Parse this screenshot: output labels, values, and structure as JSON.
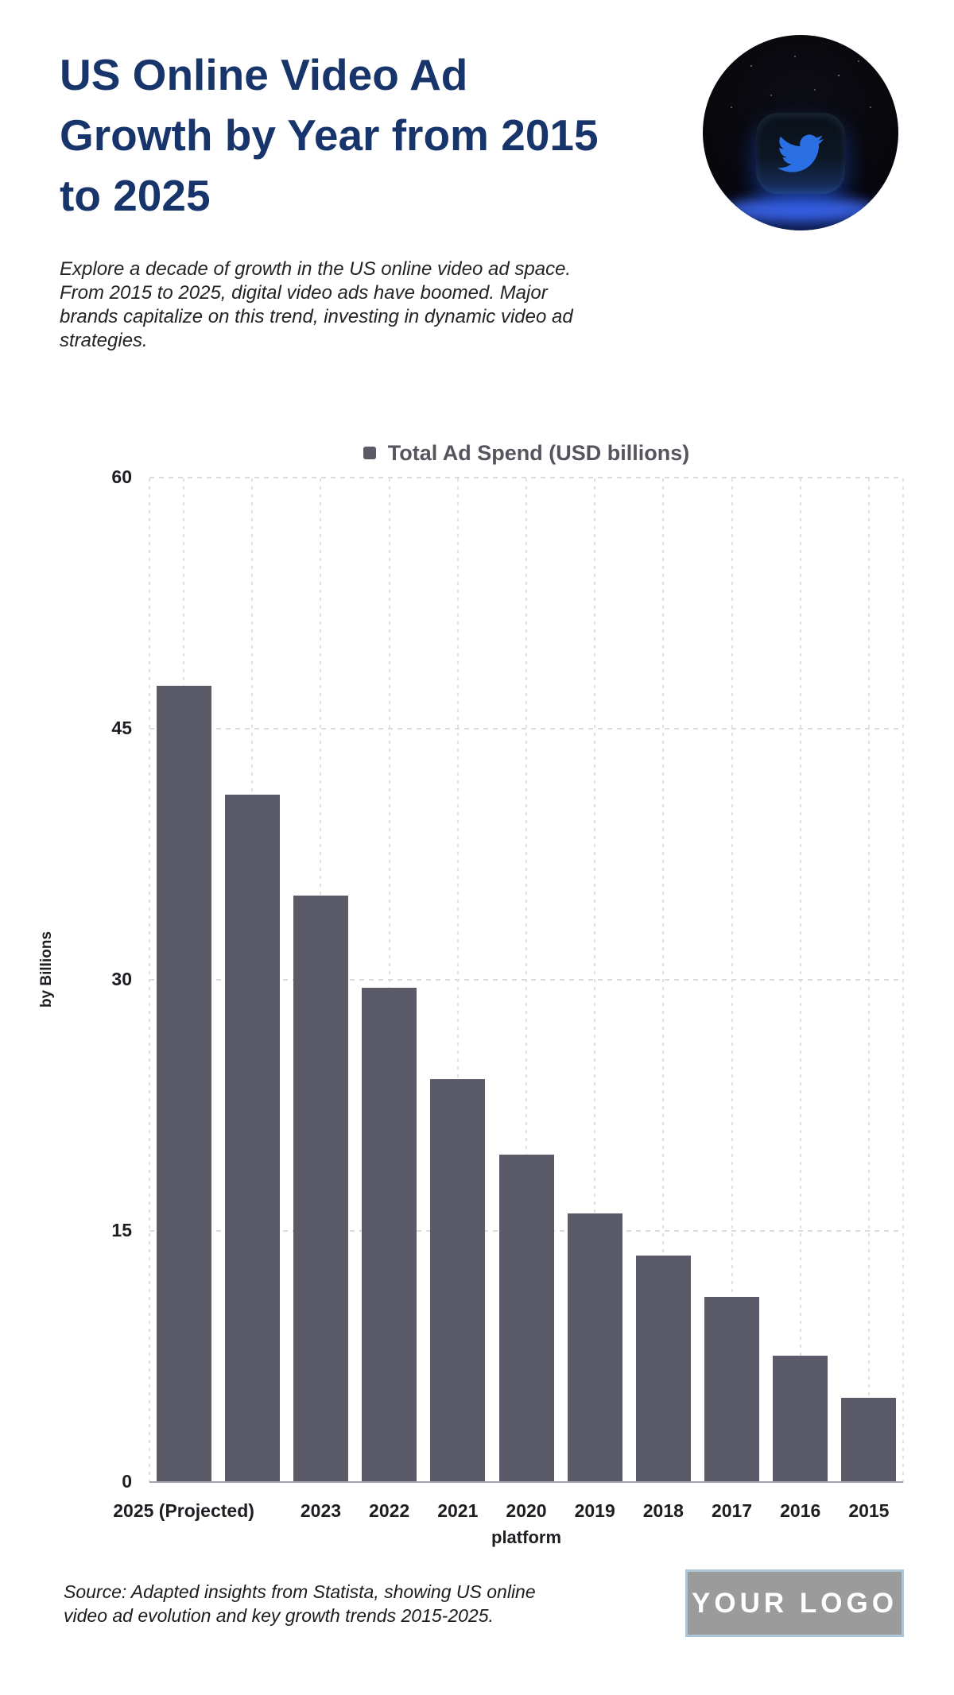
{
  "header": {
    "title": "US Online Video Ad Growth by Year from 2015 to 2025",
    "intro": "Explore a decade of growth in the US online video ad space. From 2015 to 2025, digital video ads have boomed. Major brands capitalize on this trend, investing in dynamic video ad strategies."
  },
  "brand": {
    "icon": "twitter-bird-icon",
    "icon_color": "#2a6fe4"
  },
  "chart_data": {
    "type": "bar",
    "legend": "Total Ad Spend (USD billions)",
    "legend_position": "top-center",
    "categories": [
      "2025 (Projected)",
      "",
      "2023",
      "2022",
      "2021",
      "2020",
      "2019",
      "2018",
      "2017",
      "2016",
      "2015"
    ],
    "values": [
      47.5,
      41,
      35,
      29.5,
      24,
      19.5,
      16,
      13.5,
      11,
      7.5,
      5
    ],
    "xlabel": "platform",
    "ylabel": "by Billions",
    "ylim": [
      0,
      60
    ],
    "yticks": [
      60,
      45,
      30,
      15,
      0
    ],
    "grid": "dashed",
    "bar_color": "#5a5a68"
  },
  "footer": {
    "source": "Source: Adapted insights from Statista, showing US online video ad evolution and key growth trends 2015-2025.",
    "logo_placeholder": "YOUR LOGO"
  }
}
